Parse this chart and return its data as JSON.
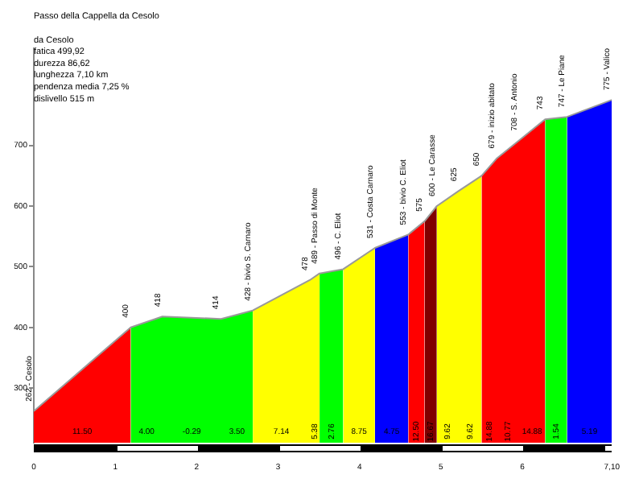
{
  "chart_data": {
    "type": "area",
    "title": "Passo della Cappella da Cesolo",
    "annotations": [
      "da Cesolo",
      "fatica 499,92",
      "durezza 86,62",
      "lunghezza 7,10 km",
      "pendenza media 7,25 %",
      "dislivello 515 m",
      "11.50",
      "4.00",
      "-0.29",
      "3.50",
      "7.14",
      "5.38",
      "2.76",
      "8.75",
      "4.75",
      "12.50",
      "16.67",
      "9.62",
      "9.62",
      "14.88",
      "10.77",
      "14.88",
      "1.54",
      "5.19"
    ],
    "x": [
      0,
      1.19,
      1.58,
      2.3,
      2.69,
      3.39,
      3.51,
      3.8,
      4.19,
      4.6,
      4.8,
      4.95,
      5.22,
      5.5,
      5.69,
      5.96,
      6.28,
      6.55,
      7.1
    ],
    "series": [
      {
        "type": "line",
        "color": "#999999",
        "values": [
          262,
          400,
          418,
          414,
          428,
          478,
          489,
          496,
          531,
          553,
          575,
          600,
          625,
          650,
          679,
          708,
          743,
          747,
          775
        ],
        "value_labels": [
          "262 - Cesolo",
          "400",
          "418",
          "414",
          "428 - bivio S. Carnaro",
          "478",
          "489 - Passo di Monte",
          "496 - C. Eliot",
          "531 - Costa Carnaro",
          "553 - bivio C. Eliot",
          "575",
          "600 - Le Carasse",
          "625",
          "650",
          "679 - inizio abitato",
          "708 - S. Antonio",
          "743",
          "747 - Le Piane",
          "775 - Valico"
        ]
      },
      {
        "color": "#ff0000",
        "values": [
          262,
          400,
          null,
          null,
          null,
          null,
          null,
          null,
          null,
          553,
          575,
          null,
          null,
          650,
          679,
          708,
          743,
          null,
          null
        ]
      },
      {
        "color": "#00ff00",
        "values": [
          null,
          400,
          418,
          414,
          428,
          null,
          489,
          496,
          null,
          null,
          null,
          null,
          null,
          null,
          null,
          null,
          743,
          747,
          null
        ]
      },
      {
        "color": "#ffff00",
        "values": [
          null,
          null,
          null,
          null,
          428,
          478,
          489,
          null,
          null,
          null,
          null,
          600,
          625,
          650,
          null,
          null,
          null,
          null,
          null
        ]
      },
      {
        "color": "#ffff00",
        "values": [
          null,
          null,
          null,
          null,
          null,
          null,
          null,
          496,
          531,
          null,
          null,
          null,
          null,
          null,
          null,
          null,
          null,
          null,
          null
        ]
      },
      {
        "color": "#0000ff",
        "values": [
          null,
          null,
          null,
          null,
          null,
          null,
          null,
          null,
          531,
          553,
          null,
          null,
          null,
          null,
          null,
          null,
          null,
          747,
          775
        ]
      },
      {
        "color": "#800000",
        "values": [
          null,
          null,
          null,
          null,
          null,
          null,
          null,
          null,
          null,
          null,
          575,
          600,
          null,
          null,
          null,
          null,
          null,
          null,
          null
        ]
      }
    ],
    "xlim": [
      0,
      7.1
    ],
    "xticks": [
      0,
      1,
      2,
      3,
      4,
      5,
      6,
      {
        "value": 7.1,
        "label": "7,10"
      }
    ],
    "ylim": [
      210,
      860
    ],
    "yticks": [
      300,
      400,
      500,
      600,
      700
    ],
    "grid": false,
    "legend": false
  }
}
